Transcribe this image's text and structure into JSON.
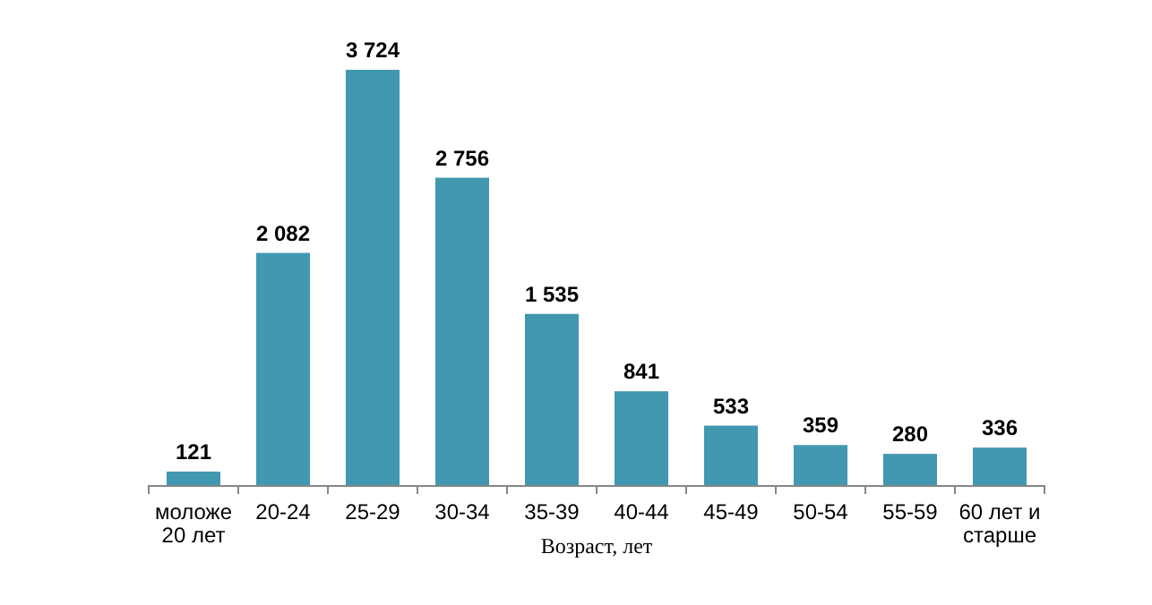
{
  "chart_data": {
    "type": "bar",
    "xlabel": "Возраст, лет",
    "categories": [
      "моложе 20 лет",
      "20-24",
      "25-29",
      "30-34",
      "35-39",
      "40-44",
      "45-49",
      "50-54",
      "55-59",
      "60 лет и старше"
    ],
    "values": [
      121,
      2082,
      3724,
      2756,
      1535,
      841,
      533,
      359,
      280,
      336
    ],
    "value_labels": [
      "121",
      "2 082",
      "3 724",
      "2 756",
      "1 535",
      "841",
      "533",
      "359",
      "280",
      "336"
    ],
    "color": "#4198b0"
  }
}
